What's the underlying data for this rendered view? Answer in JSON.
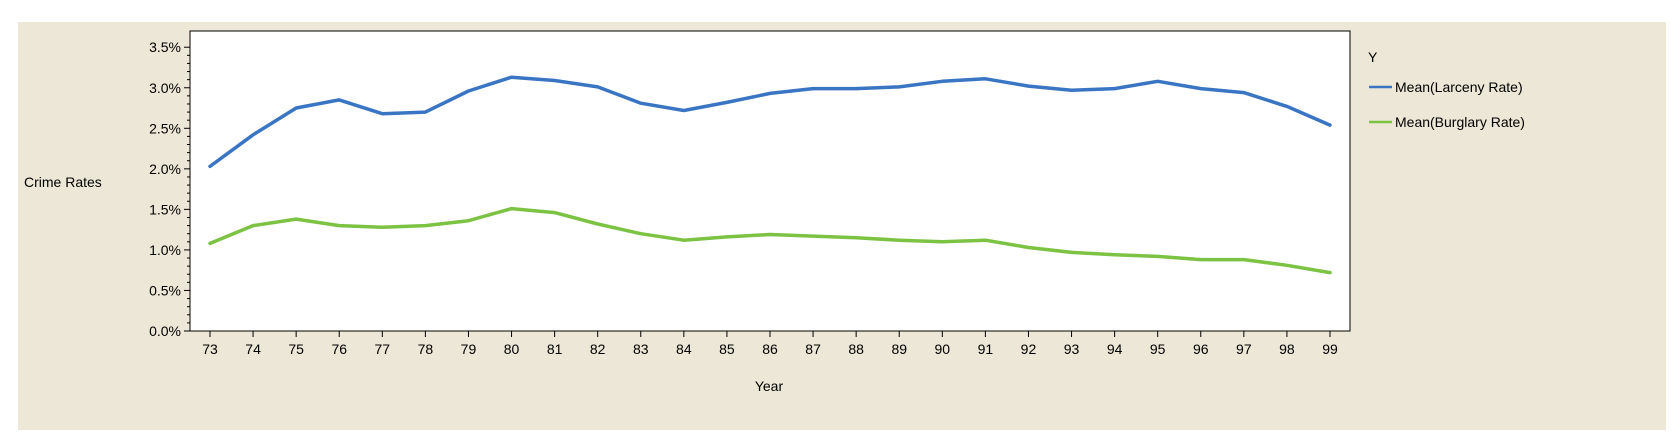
{
  "chart_data": {
    "type": "line",
    "title": "",
    "xlabel": "Year",
    "ylabel": "Crime Rates",
    "legend_title": "Y",
    "legend_position": "right",
    "categories": [
      "73",
      "74",
      "75",
      "76",
      "77",
      "78",
      "79",
      "80",
      "81",
      "82",
      "83",
      "84",
      "85",
      "86",
      "87",
      "88",
      "89",
      "90",
      "91",
      "92",
      "93",
      "94",
      "95",
      "96",
      "97",
      "98",
      "99"
    ],
    "y_ticks": [
      "0.0%",
      "0.5%",
      "1.0%",
      "1.5%",
      "2.0%",
      "2.5%",
      "3.0%",
      "3.5%"
    ],
    "ylim": [
      0,
      3.7
    ],
    "grid": false,
    "series": [
      {
        "name": "Mean(Larceny Rate)",
        "color": "#3a75c4",
        "values": [
          2.03,
          2.42,
          2.75,
          2.85,
          2.68,
          2.7,
          2.96,
          3.13,
          3.09,
          3.01,
          2.81,
          2.72,
          2.82,
          2.93,
          2.99,
          2.99,
          3.01,
          3.08,
          3.11,
          3.02,
          2.97,
          2.99,
          3.08,
          2.99,
          2.94,
          2.77,
          2.54
        ]
      },
      {
        "name": "Mean(Burglary Rate)",
        "color": "#7cc243",
        "values": [
          1.08,
          1.3,
          1.38,
          1.3,
          1.28,
          1.3,
          1.36,
          1.51,
          1.46,
          1.32,
          1.2,
          1.12,
          1.16,
          1.19,
          1.17,
          1.15,
          1.12,
          1.1,
          1.12,
          1.03,
          0.97,
          0.94,
          0.92,
          0.88,
          0.88,
          0.81,
          0.72
        ]
      }
    ]
  }
}
